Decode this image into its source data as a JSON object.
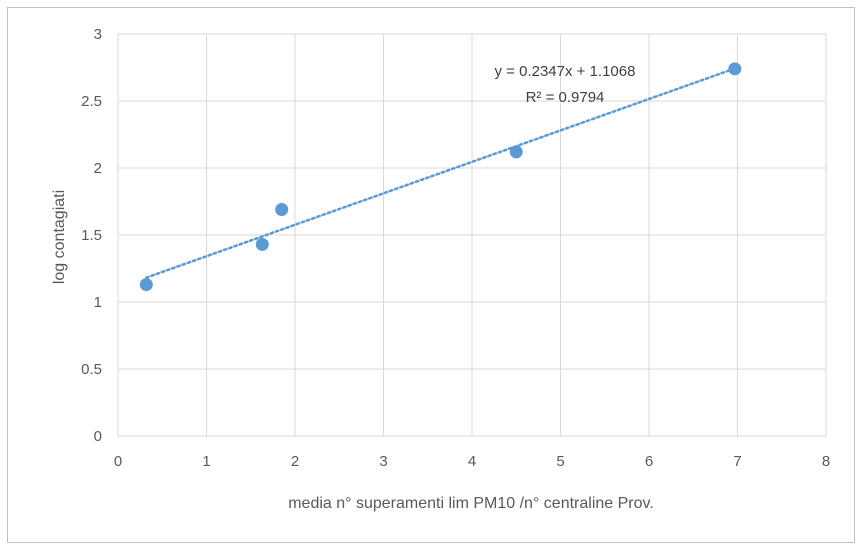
{
  "chart_data": {
    "type": "scatter",
    "title": "",
    "xlabel": "media n° superamenti lim PM10 /n° centraline Prov.",
    "ylabel": "log contagiati",
    "xlim": [
      0,
      8
    ],
    "ylim": [
      0,
      3
    ],
    "x_ticks": [
      "0",
      "1",
      "2",
      "3",
      "4",
      "5",
      "6",
      "7",
      "8"
    ],
    "y_ticks": [
      "0",
      "0.5",
      "1",
      "1.5",
      "2",
      "2.5",
      "3"
    ],
    "grid": true,
    "points": [
      {
        "x": 0.32,
        "y": 1.13
      },
      {
        "x": 1.63,
        "y": 1.43
      },
      {
        "x": 1.85,
        "y": 1.69
      },
      {
        "x": 4.5,
        "y": 2.12
      },
      {
        "x": 6.97,
        "y": 2.74
      }
    ],
    "trendline": {
      "type": "linear",
      "slope": 0.2347,
      "intercept": 1.1068,
      "x_range": [
        0.32,
        6.97
      ],
      "equation_label": "y = 0.2347x + 1.1068",
      "r2_label": "R² = 0.9794"
    },
    "colors": {
      "marker": "#5b9bd5",
      "trendline": "#5b9bd5",
      "grid": "#d9d9d9",
      "text": "#595959"
    }
  }
}
